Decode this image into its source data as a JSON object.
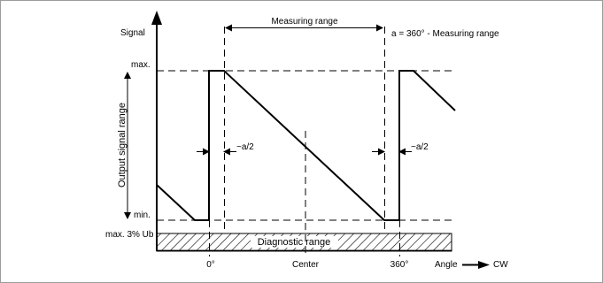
{
  "labels": {
    "signal": "Signal",
    "measuring_range": "Measuring range",
    "a_formula": "a = 360° - Measuring range",
    "max": "max.",
    "min": "min.",
    "output_signal_range": "Output signal range",
    "half_a_left": "~a/2",
    "half_a_right": "~a/2",
    "max_3_ub": "max. 3% Ub",
    "diagnostic_range": "Diagnostic range",
    "zero_degree": "0°",
    "center": "Center",
    "three_sixty_degree": "360°",
    "angle": "Angle",
    "cw": "CW"
  },
  "colors": {
    "line": "#000000",
    "border": "#9c9c9c",
    "background": "#ffffff"
  }
}
